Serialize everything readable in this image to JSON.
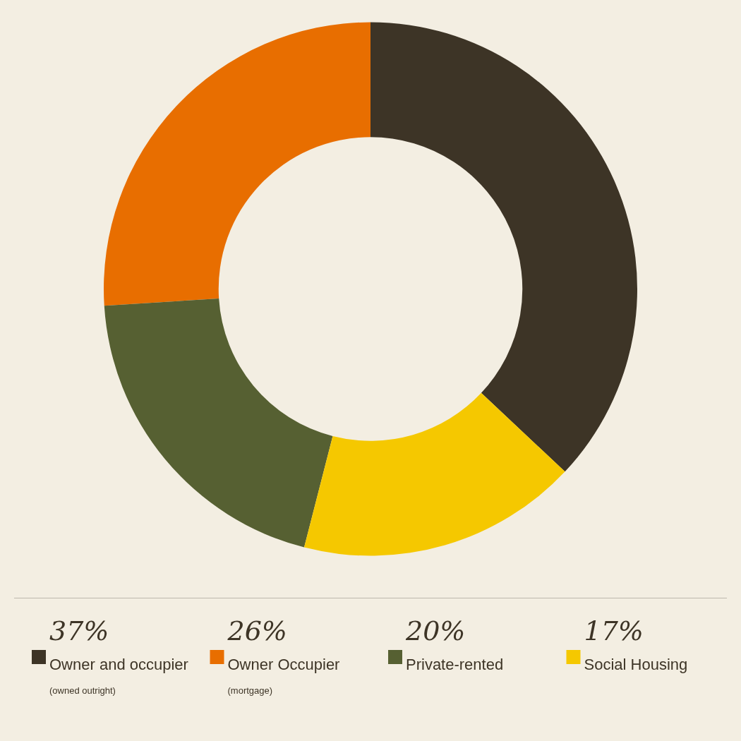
{
  "chart_data": {
    "type": "donut",
    "categories": [
      "Owner and occupier",
      "Owner Occupier",
      "Private-rented",
      "Social Housing"
    ],
    "values": [
      37,
      26,
      20,
      17
    ],
    "value_labels": [
      "37%",
      "26%",
      "20%",
      "17%"
    ],
    "colors": [
      "#3d3426",
      "#e86e00",
      "#566032",
      "#f5c800"
    ],
    "annotations": [
      {
        "text": "(owned outright)",
        "x": "Owner and occupier"
      },
      {
        "text": "(mortgage)",
        "x": "Owner Occupier"
      }
    ],
    "legend": "bottom"
  }
}
